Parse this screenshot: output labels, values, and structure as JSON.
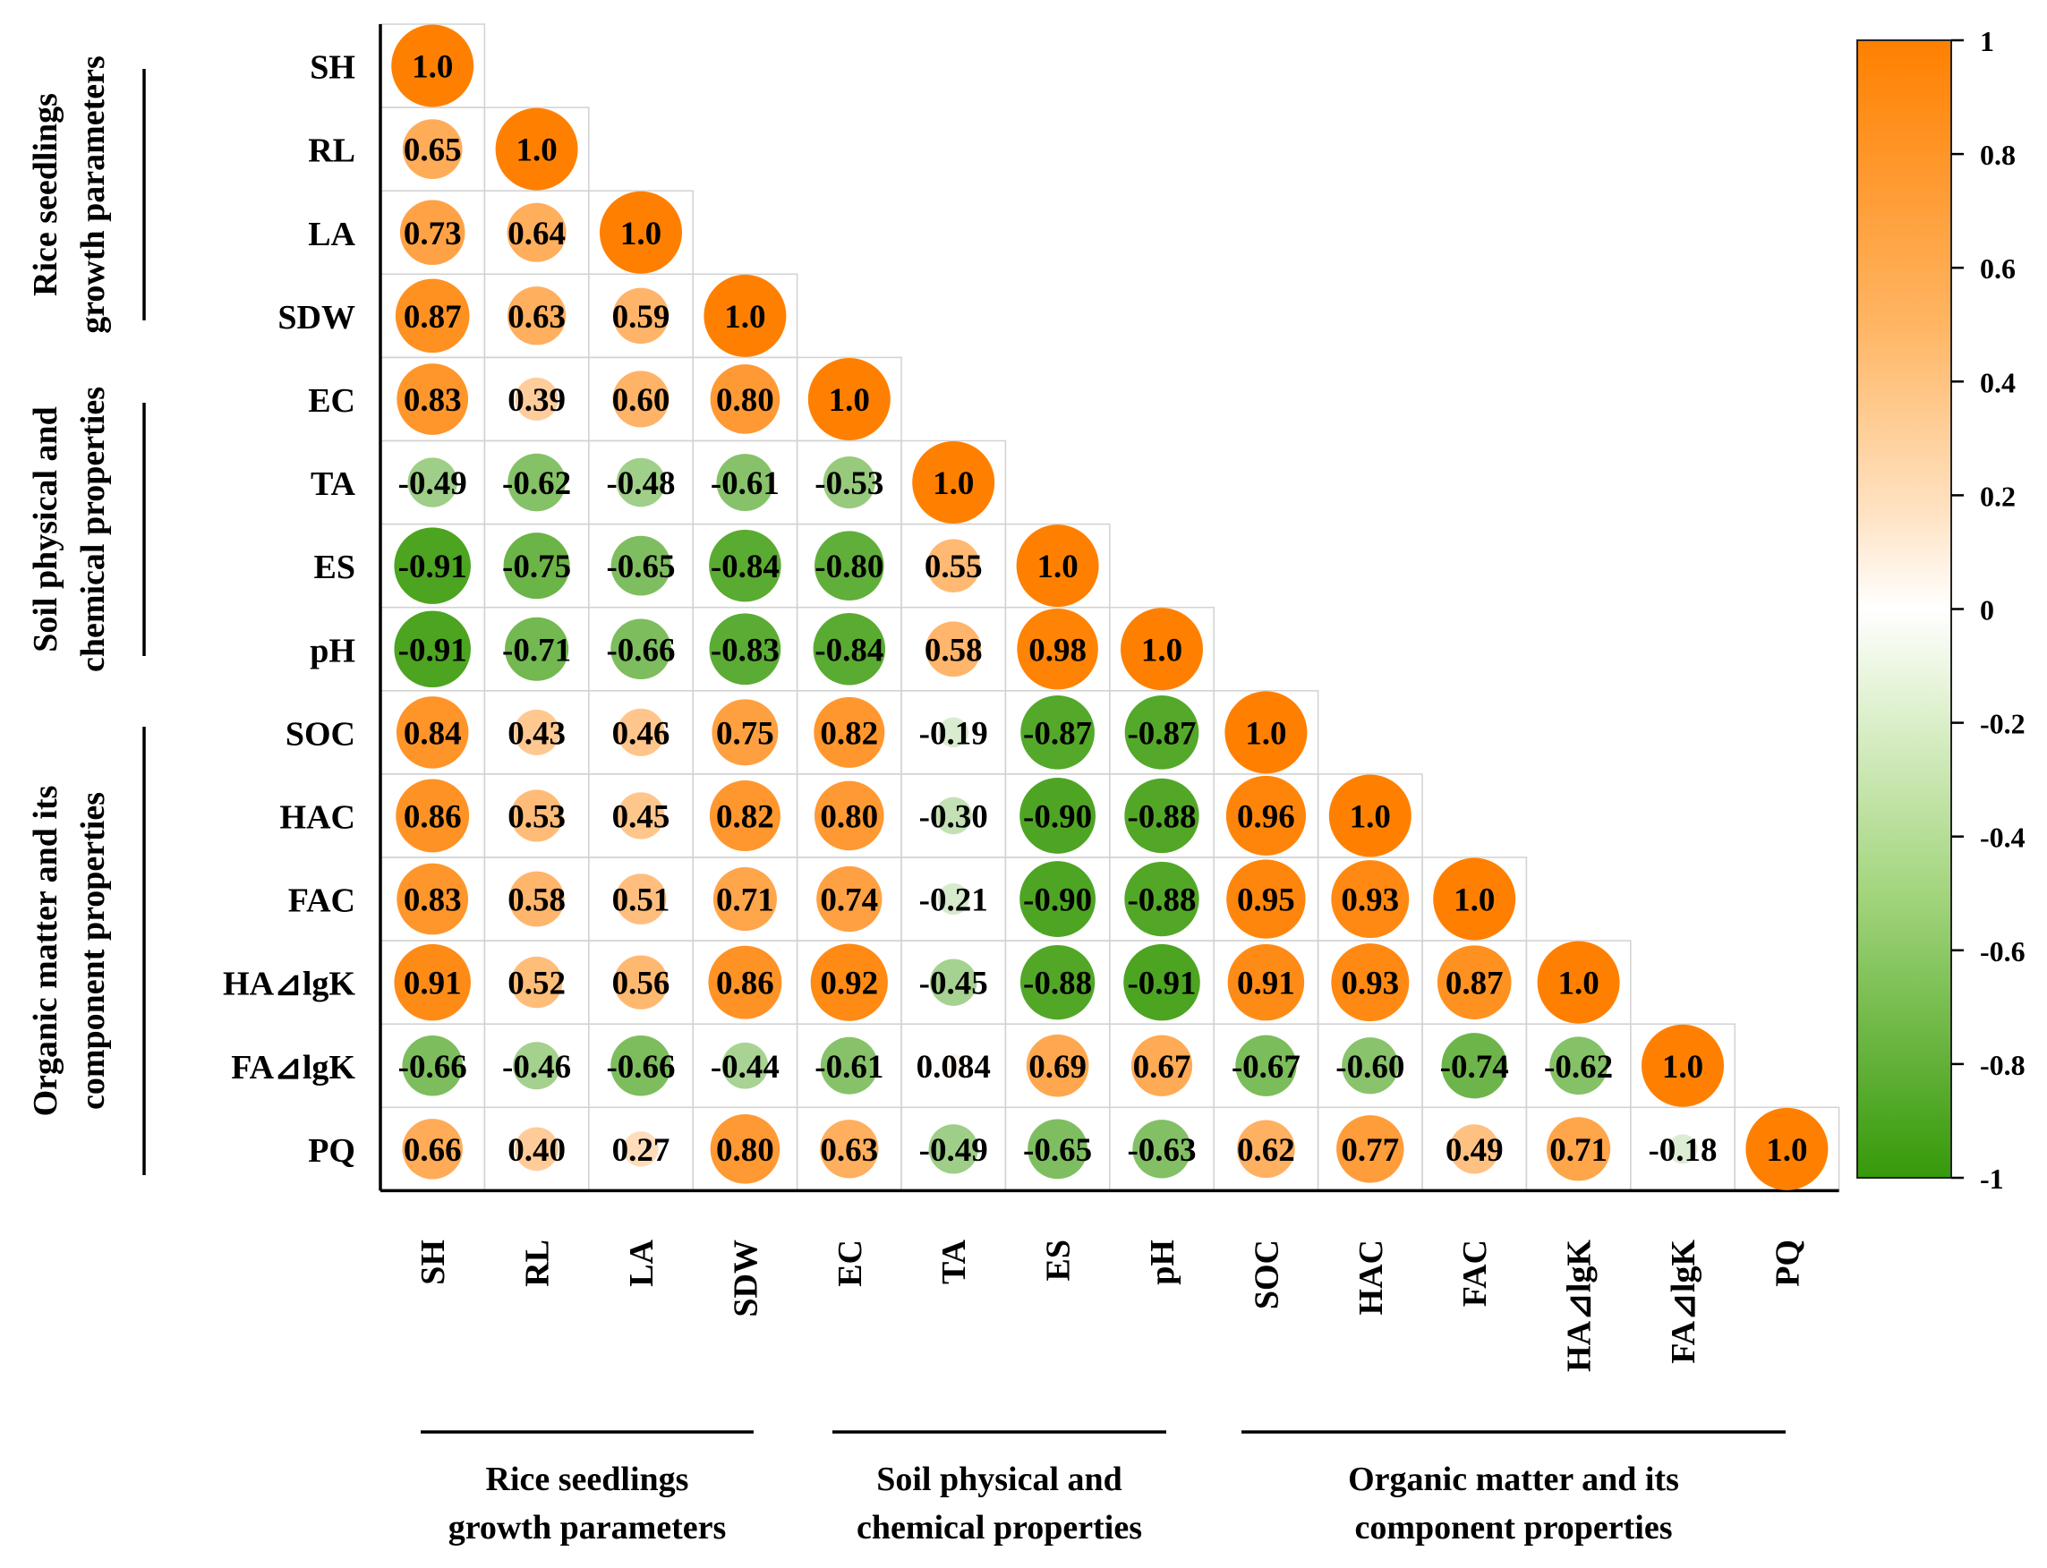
{
  "chart_data": {
    "type": "heatmap",
    "title": "",
    "variables": [
      "SH",
      "RL",
      "LA",
      "SDW",
      "EC",
      "TA",
      "ES",
      "pH",
      "SOC",
      "HAC",
      "FAC",
      "HA⊿lgK",
      "FA⊿lgK",
      "PQ"
    ],
    "matrix_labels": [
      [
        "1.0"
      ],
      [
        "0.65",
        "1.0"
      ],
      [
        "0.73",
        "0.64",
        "1.0"
      ],
      [
        "0.87",
        "0.63",
        "0.59",
        "1.0"
      ],
      [
        "0.83",
        "0.39",
        "0.60",
        "0.80",
        "1.0"
      ],
      [
        "-0.49",
        "-0.62",
        "-0.48",
        "-0.61",
        "-0.53",
        "1.0"
      ],
      [
        "-0.91",
        "-0.75",
        "-0.65",
        "-0.84",
        "-0.80",
        "0.55",
        "1.0"
      ],
      [
        "-0.91",
        "-0.71",
        "-0.66",
        "-0.83",
        "-0.84",
        "0.58",
        "0.98",
        "1.0"
      ],
      [
        "0.84",
        "0.43",
        "0.46",
        "0.75",
        "0.82",
        "-0.19",
        "-0.87",
        "-0.87",
        "1.0"
      ],
      [
        "0.86",
        "0.53",
        "0.45",
        "0.82",
        "0.80",
        "-0.30",
        "-0.90",
        "-0.88",
        "0.96",
        "1.0"
      ],
      [
        "0.83",
        "0.58",
        "0.51",
        "0.71",
        "0.74",
        "-0.21",
        "-0.90",
        "-0.88",
        "0.95",
        "0.93",
        "1.0"
      ],
      [
        "0.91",
        "0.52",
        "0.56",
        "0.86",
        "0.92",
        "-0.45",
        "-0.88",
        "-0.91",
        "0.91",
        "0.93",
        "0.87",
        "1.0"
      ],
      [
        "-0.66",
        "-0.46",
        "-0.66",
        "-0.44",
        "-0.61",
        "0.084",
        "0.69",
        "0.67",
        "-0.67",
        "-0.60",
        "-0.74",
        "-0.62",
        "1.0"
      ],
      [
        "0.66",
        "0.40",
        "0.27",
        "0.80",
        "0.63",
        "-0.49",
        "-0.65",
        "-0.63",
        "0.62",
        "0.77",
        "0.49",
        "0.71",
        "-0.18",
        "1.0"
      ]
    ],
    "groups": [
      {
        "label_line1": "Rice seedlings",
        "label_line2": "growth parameters",
        "first": 0,
        "last": 3
      },
      {
        "label_line1": "Soil physical and",
        "label_line2": "chemical properties",
        "first": 4,
        "last": 7
      },
      {
        "label_line1": "Organic matter and its",
        "label_line2": "component properties",
        "first": 8,
        "last": 13
      }
    ],
    "colorbar": {
      "ticks": [
        "1",
        "0.8",
        "0.6",
        "0.4",
        "0.2",
        "0",
        "-0.2",
        "-0.4",
        "-0.6",
        "-0.8",
        "-1"
      ],
      "range": [
        -1,
        1
      ]
    },
    "colors": {
      "positive": "#ff8000",
      "neutral": "#ffffff",
      "negative": "#3a9b0a",
      "grid": "#d2d2d2"
    }
  }
}
